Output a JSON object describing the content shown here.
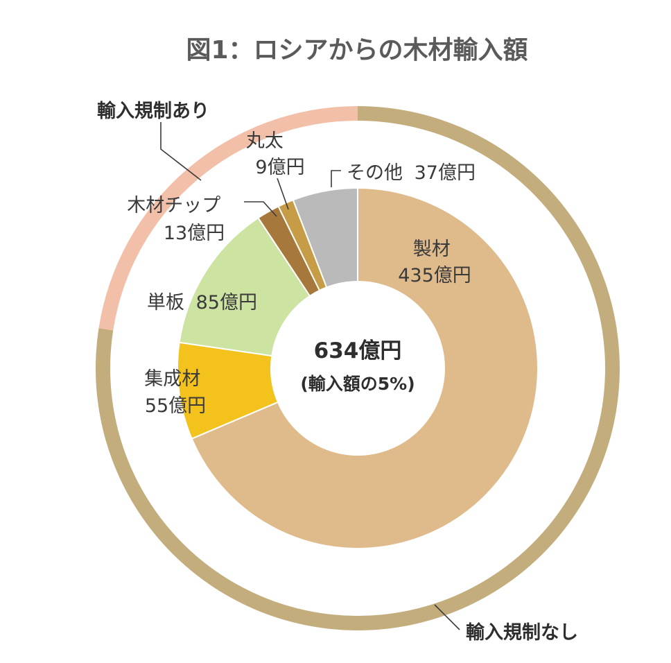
{
  "chart_data": {
    "type": "pie",
    "title": "図1：ロシアからの木材輸入額",
    "center": {
      "main": "634億円",
      "sub": "(輸入額の5%)"
    },
    "inner_ring": {
      "categories": [
        "製材",
        "集成材",
        "単板",
        "木材チップ",
        "丸太",
        "その他"
      ],
      "values": [
        435,
        55,
        85,
        13,
        9,
        37
      ],
      "value_labels": [
        "435億円",
        "55億円",
        "85億円",
        "13億円",
        "9億円",
        "37億円"
      ],
      "label_texts": [
        "製材\n435億円",
        "集成材\n55億円",
        "単板 85億円",
        "木材チップ\n13億円",
        "丸太\n9億円",
        "その他 37億円"
      ],
      "colors": [
        "#dfbb8b",
        "#f4c21c",
        "#cde3a2",
        "#a6783c",
        "#c79c46",
        "#bababa"
      ]
    },
    "outer_ring": {
      "categories": [
        "輸入規制なし",
        "輸入規制あり"
      ],
      "values": [
        491,
        143
      ],
      "colors": [
        "#c4ad7c",
        "#f2bfa8"
      ]
    }
  }
}
